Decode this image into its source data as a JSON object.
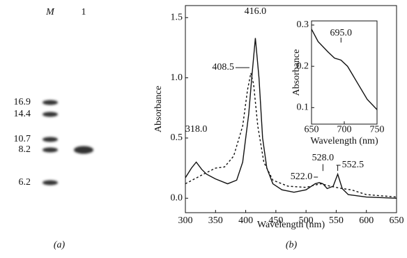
{
  "chart_data": [
    {
      "type": "gel",
      "caption": "(a)",
      "lanes": [
        {
          "name": "M",
          "bands": [
            16.9,
            14.4,
            10.7,
            8.2,
            6.2
          ]
        },
        {
          "name": "1",
          "bands": [
            8.2
          ]
        }
      ]
    },
    {
      "type": "line",
      "caption": "(b)",
      "xlabel": "Wavelength (nm)",
      "ylabel": "Absorbance",
      "xlim": [
        300,
        650
      ],
      "xticks": [
        300,
        350,
        400,
        450,
        500,
        550,
        600,
        650
      ],
      "ylim": [
        -0.12,
        1.6
      ],
      "yticks": [
        {
          "value": 0,
          "label": "0.0"
        },
        {
          "value": 0.5,
          "label": "0.5"
        },
        {
          "value": 1,
          "label": "1.0"
        },
        {
          "value": 1.5,
          "label": "1.5"
        }
      ],
      "series": [
        {
          "color": "#111111",
          "dash": false,
          "x": [
            300,
            310,
            318,
            327,
            335,
            350,
            370,
            385,
            395,
            405,
            410,
            416,
            422,
            428,
            435,
            445,
            460,
            480,
            500,
            515,
            522,
            528,
            535,
            545,
            552.5,
            560,
            570,
            600,
            650
          ],
          "values": [
            0.17,
            0.25,
            0.3,
            0.24,
            0.2,
            0.16,
            0.12,
            0.15,
            0.3,
            0.7,
            1.0,
            1.33,
            1.0,
            0.5,
            0.25,
            0.12,
            0.07,
            0.05,
            0.07,
            0.12,
            0.13,
            0.12,
            0.08,
            0.1,
            0.2,
            0.08,
            0.03,
            0.01,
            0.0
          ]
        },
        {
          "color": "#111111",
          "dash": true,
          "x": [
            300,
            330,
            350,
            365,
            380,
            395,
            403,
            408.5,
            413,
            420,
            430,
            445,
            470,
            500,
            515,
            525,
            540,
            560,
            575,
            600,
            650
          ],
          "values": [
            0.12,
            0.2,
            0.25,
            0.26,
            0.35,
            0.6,
            0.9,
            1.04,
            0.95,
            0.6,
            0.3,
            0.15,
            0.1,
            0.09,
            0.11,
            0.12,
            0.1,
            0.08,
            0.07,
            0.03,
            0.01
          ]
        }
      ],
      "annotations": [
        {
          "value": 416,
          "label": "416.0"
        },
        {
          "value": 408.5,
          "label": "408.5"
        },
        {
          "value": 318,
          "label": "318.0"
        },
        {
          "value": 522,
          "label": "522.0"
        },
        {
          "value": 528,
          "label": "528.0"
        },
        {
          "value": 552.5,
          "label": "552.5"
        }
      ]
    },
    {
      "type": "line",
      "xlabel": "Wavelength (nm)",
      "ylabel": "Absorbance",
      "xlim": [
        650,
        750
      ],
      "xticks": [
        650,
        700,
        750
      ],
      "ylim": [
        0.06,
        0.31
      ],
      "yticks": [
        0.1,
        0.2,
        0.3
      ],
      "series": [
        {
          "color": "#111111",
          "dash": false,
          "x": [
            650,
            660,
            675,
            685,
            695,
            705,
            720,
            735,
            750
          ],
          "values": [
            0.29,
            0.26,
            0.235,
            0.22,
            0.215,
            0.2,
            0.16,
            0.12,
            0.095
          ]
        }
      ],
      "annotations": [
        {
          "value": 695,
          "label": "695.0"
        }
      ]
    }
  ]
}
